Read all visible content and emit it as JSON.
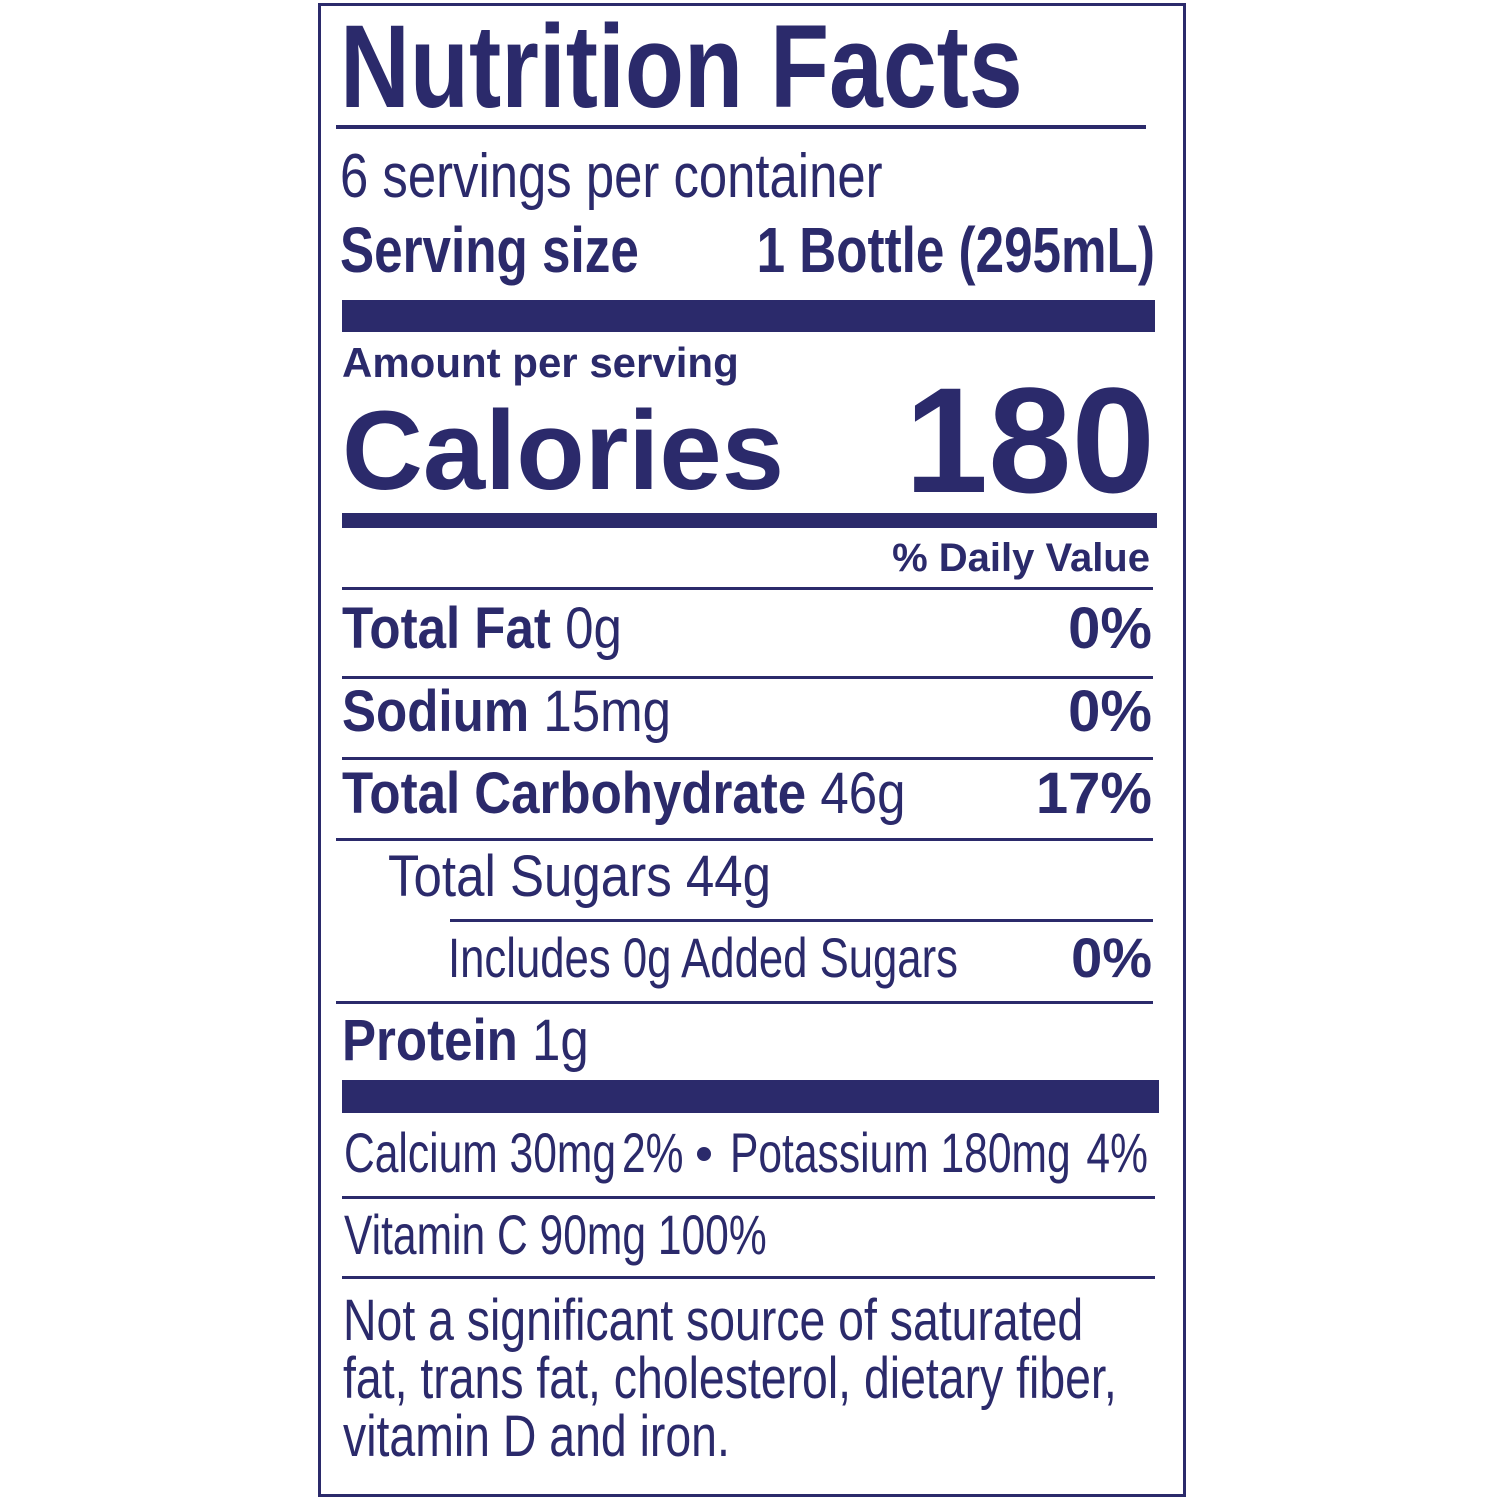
{
  "title": "Nutrition Facts",
  "servings_per_container": "6 servings per container",
  "serving_size": {
    "label": "Serving size",
    "value": "1 Bottle (295mL)"
  },
  "amount_per_serving": "Amount per serving",
  "calories": {
    "label": "Calories",
    "value": 180
  },
  "daily_value_header": "% Daily Value",
  "nutrients": [
    {
      "name": "Total Fat",
      "amount": "0g",
      "dv": "0%"
    },
    {
      "name": "Sodium",
      "amount": "15mg",
      "dv": "0%"
    },
    {
      "name": "Total Carbohydrate",
      "amount": "46g",
      "dv": "17%"
    }
  ],
  "total_sugars": {
    "name": "Total Sugars",
    "amount": "44g"
  },
  "added_sugars": {
    "text": "Includes 0g Added Sugars",
    "dv": "0%"
  },
  "protein": {
    "name": "Protein",
    "amount": "1g"
  },
  "minerals": [
    {
      "text": "Calcium 30mg",
      "dv": "2%"
    },
    {
      "text": "Potassium 180mg",
      "dv": "4%"
    }
  ],
  "vitamin_c": "Vitamin C 90mg 100%",
  "footnote": "Not a significant source of saturated fat, trans fat, cholesterol, dietary fiber, vitamin D and iron."
}
